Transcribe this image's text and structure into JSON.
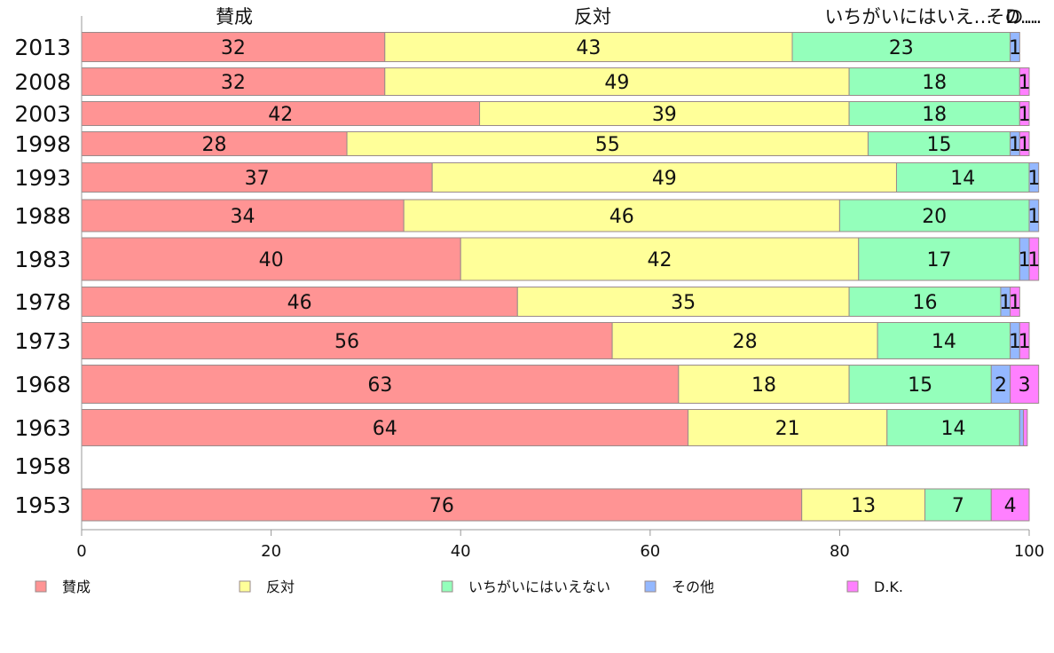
{
  "chart_data": {
    "type": "bar",
    "orientation": "horizontal",
    "stacked": true,
    "categories": [
      "2013",
      "2008",
      "2003",
      "1998",
      "1993",
      "1988",
      "1983",
      "1978",
      "1973",
      "1968",
      "1963",
      "1958",
      "1953"
    ],
    "series": [
      {
        "name": "賛成",
        "color": "#ff9494",
        "values": [
          32,
          32,
          42,
          28,
          37,
          34,
          40,
          46,
          56,
          63,
          64,
          null,
          76
        ]
      },
      {
        "name": "反対",
        "color": "#ffff99",
        "values": [
          43,
          49,
          39,
          55,
          49,
          46,
          42,
          35,
          28,
          18,
          21,
          null,
          13
        ]
      },
      {
        "name": "いちがいにはいえない",
        "color": "#94ffbb",
        "values": [
          23,
          18,
          18,
          15,
          14,
          20,
          17,
          16,
          14,
          15,
          14,
          null,
          7
        ]
      },
      {
        "name": "その他",
        "color": "#94b8ff",
        "values": [
          1,
          0,
          0,
          1,
          1,
          1,
          1,
          1,
          1,
          2,
          0.4,
          null,
          0
        ]
      },
      {
        "name": "D.K.",
        "color": "#ff80ff",
        "values": [
          0,
          1,
          1,
          1,
          0,
          0,
          1,
          1,
          1,
          3,
          0.4,
          null,
          4
        ]
      }
    ],
    "labels": [
      [
        "32",
        "43",
        "23",
        "1",
        ""
      ],
      [
        "32",
        "49",
        "18",
        "",
        "1"
      ],
      [
        "42",
        "39",
        "18",
        "",
        "1"
      ],
      [
        "28",
        "55",
        "15",
        "1",
        "1"
      ],
      [
        "37",
        "49",
        "14",
        "1",
        ""
      ],
      [
        "34",
        "46",
        "20",
        "1",
        ""
      ],
      [
        "40",
        "42",
        "17",
        "1",
        "1"
      ],
      [
        "46",
        "35",
        "16",
        "1",
        "1"
      ],
      [
        "56",
        "28",
        "14",
        "1",
        "1"
      ],
      [
        "63",
        "18",
        "15",
        "2",
        "3"
      ],
      [
        "64",
        "21",
        "14",
        "",
        ""
      ],
      [
        "",
        "",
        "",
        "",
        ""
      ],
      [
        "76",
        "13",
        "7",
        "",
        "4"
      ]
    ],
    "header_labels": [
      "賛成",
      "反対",
      "いちがいにはいえ…",
      "その…",
      "D…"
    ],
    "x_ticks": [
      "0",
      "20",
      "40",
      "60",
      "80",
      "100"
    ],
    "xlim": [
      0,
      100
    ],
    "grid": false,
    "legend": {
      "position": "bottom",
      "items": [
        "賛成",
        "反対",
        "いちがいにはいえない",
        "その他",
        "D.K."
      ]
    }
  }
}
